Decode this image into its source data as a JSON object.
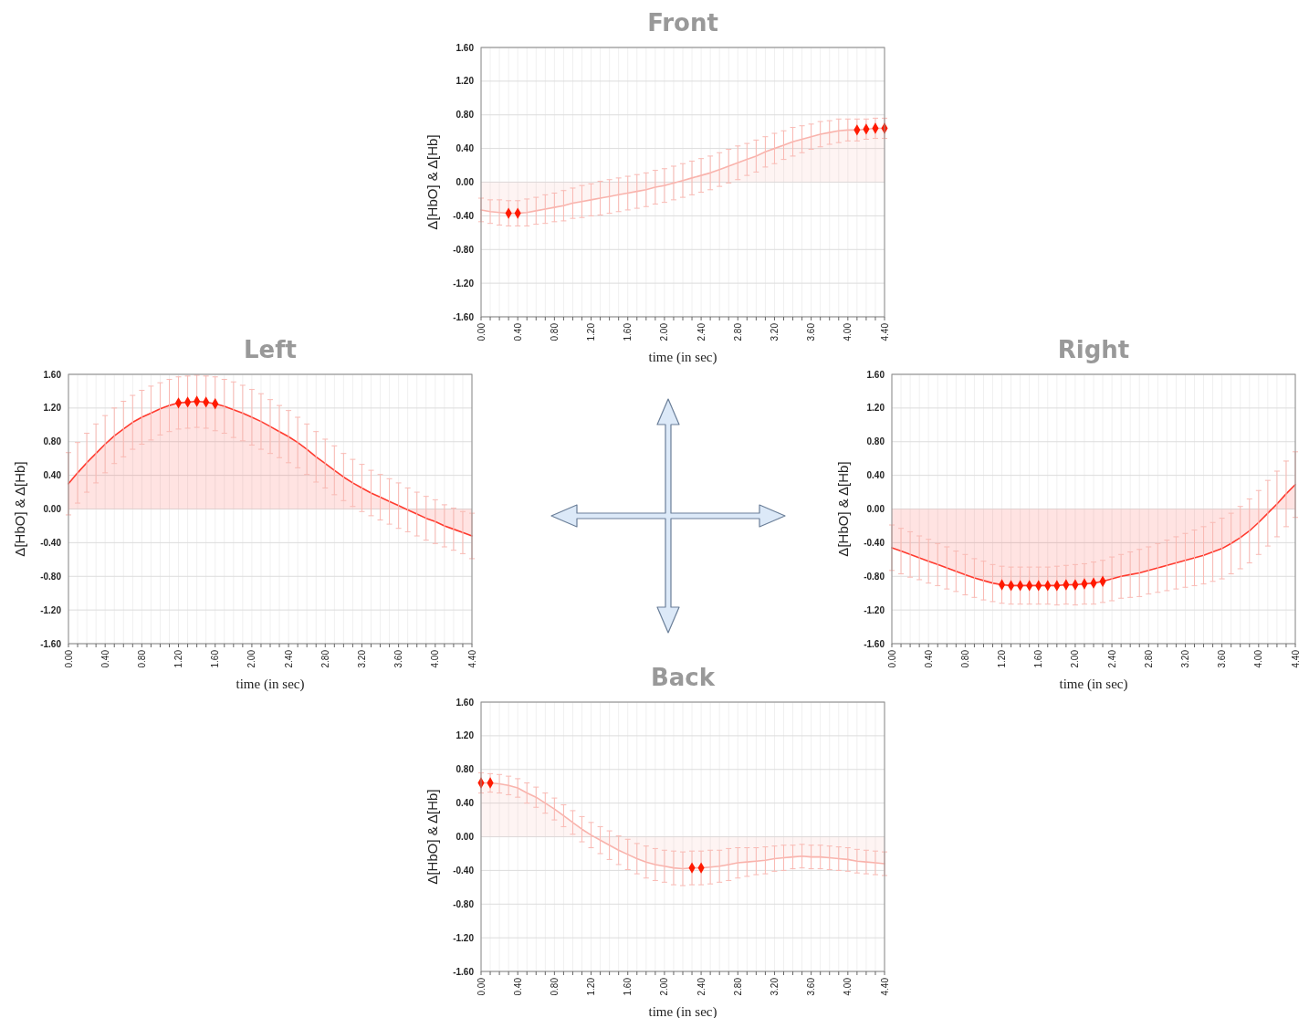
{
  "chart_data": [
    {
      "type": "area",
      "title": "Front",
      "xlabel": "time (in sec)",
      "ylabel": "Δ[HbO] & Δ[Hb]",
      "xlim": [
        0,
        4.4
      ],
      "ylim": [
        -1.6,
        1.6
      ],
      "grid": true,
      "x": [
        0,
        0.1,
        0.2,
        0.3,
        0.4,
        0.5,
        0.6,
        0.7,
        0.8,
        0.9,
        1,
        1.1,
        1.2,
        1.3,
        1.4,
        1.5,
        1.6,
        1.7,
        1.8,
        1.9,
        2,
        2.1,
        2.2,
        2.3,
        2.4,
        2.5,
        2.6,
        2.7,
        2.8,
        2.9,
        3,
        3.1,
        3.2,
        3.3,
        3.4,
        3.5,
        3.6,
        3.7,
        3.8,
        3.9,
        4,
        4.1,
        4.2,
        4.3,
        4.4
      ],
      "xticks": [
        {
          "value": 0,
          "label": "0.00"
        },
        {
          "value": 0.1,
          "label": null
        },
        {
          "value": 0.2,
          "label": null
        },
        {
          "value": 0.3,
          "label": null
        },
        {
          "value": 0.4,
          "label": "0.40"
        },
        {
          "value": 0.5,
          "label": null
        },
        {
          "value": 0.6,
          "label": null
        },
        {
          "value": 0.7,
          "label": null
        },
        {
          "value": 0.8,
          "label": "0.80"
        },
        {
          "value": 0.9,
          "label": null
        },
        {
          "value": 1,
          "label": null
        },
        {
          "value": 1.1,
          "label": null
        },
        {
          "value": 1.2,
          "label": "1.20"
        },
        {
          "value": 1.3,
          "label": null
        },
        {
          "value": 1.4,
          "label": null
        },
        {
          "value": 1.5,
          "label": null
        },
        {
          "value": 1.6,
          "label": "1.60"
        },
        {
          "value": 1.7,
          "label": null
        },
        {
          "value": 1.8,
          "label": null
        },
        {
          "value": 1.9,
          "label": null
        },
        {
          "value": 2,
          "label": "2.00"
        },
        {
          "value": 2.1,
          "label": null
        },
        {
          "value": 2.2,
          "label": null
        },
        {
          "value": 2.3,
          "label": null
        },
        {
          "value": 2.4,
          "label": "2.40"
        },
        {
          "value": 2.5,
          "label": null
        },
        {
          "value": 2.6,
          "label": null
        },
        {
          "value": 2.7,
          "label": null
        },
        {
          "value": 2.8,
          "label": "2.80"
        },
        {
          "value": 2.9,
          "label": null
        },
        {
          "value": 3,
          "label": null
        },
        {
          "value": 3.1,
          "label": null
        },
        {
          "value": 3.2,
          "label": "3.20"
        },
        {
          "value": 3.3,
          "label": null
        },
        {
          "value": 3.4,
          "label": null
        },
        {
          "value": 3.5,
          "label": null
        },
        {
          "value": 3.6,
          "label": "3.60"
        },
        {
          "value": 3.7,
          "label": null
        },
        {
          "value": 3.8,
          "label": null
        },
        {
          "value": 3.9,
          "label": null
        },
        {
          "value": 4,
          "label": "4.00"
        },
        {
          "value": 4.1,
          "label": null
        },
        {
          "value": 4.2,
          "label": null
        },
        {
          "value": 4.3,
          "label": null
        },
        {
          "value": 4.4,
          "label": "4.40"
        }
      ],
      "yticks": [
        {
          "value": -1.6,
          "label": "-1.60"
        },
        {
          "value": -1.2,
          "label": "-1.20"
        },
        {
          "value": -0.8,
          "label": "-0.80"
        },
        {
          "value": -0.4,
          "label": "-0.40"
        },
        {
          "value": 0,
          "label": "0.00"
        },
        {
          "value": 0.4,
          "label": "0.40"
        },
        {
          "value": 0.8,
          "label": "0.80"
        },
        {
          "value": 1.2,
          "label": "1.20"
        },
        {
          "value": 1.6,
          "label": "1.60"
        }
      ],
      "series": [
        {
          "color": "#f9b3ac",
          "values": [
            -0.33,
            -0.35,
            -0.36,
            -0.37,
            -0.37,
            -0.36,
            -0.34,
            -0.32,
            -0.3,
            -0.28,
            -0.25,
            -0.23,
            -0.21,
            -0.19,
            -0.17,
            -0.15,
            -0.13,
            -0.11,
            -0.09,
            -0.06,
            -0.04,
            -0.01,
            0.02,
            0.05,
            0.08,
            0.11,
            0.15,
            0.19,
            0.23,
            0.27,
            0.31,
            0.36,
            0.4,
            0.44,
            0.48,
            0.51,
            0.54,
            0.57,
            0.59,
            0.61,
            0.62,
            0.62,
            0.63,
            0.64,
            0.64
          ],
          "errors": [
            0.14,
            0.14,
            0.15,
            0.15,
            0.15,
            0.16,
            0.16,
            0.17,
            0.17,
            0.18,
            0.18,
            0.19,
            0.19,
            0.2,
            0.2,
            0.2,
            0.2,
            0.2,
            0.2,
            0.2,
            0.2,
            0.2,
            0.2,
            0.2,
            0.2,
            0.2,
            0.2,
            0.2,
            0.2,
            0.19,
            0.19,
            0.18,
            0.18,
            0.17,
            0.17,
            0.16,
            0.15,
            0.15,
            0.14,
            0.14,
            0.13,
            0.13,
            0.12,
            0.12,
            0.12
          ]
        },
        {
          "type": "scatter",
          "marker": "diamond",
          "color": "#ff1a00",
          "x": [
            0.3,
            0.4,
            4.1,
            4.2,
            4.3,
            4.4
          ],
          "values": [
            -0.37,
            -0.37,
            0.62,
            0.63,
            0.64,
            0.64
          ]
        }
      ]
    },
    {
      "type": "area",
      "title": "Left",
      "xlabel": "time (in sec)",
      "ylabel": "Δ[HbO] & Δ[Hb]",
      "xlim": [
        0,
        4.4
      ],
      "ylim": [
        -1.6,
        1.6
      ],
      "grid": true,
      "x": [
        0,
        0.1,
        0.2,
        0.3,
        0.4,
        0.5,
        0.6,
        0.7,
        0.8,
        0.9,
        1,
        1.1,
        1.2,
        1.3,
        1.4,
        1.5,
        1.6,
        1.7,
        1.8,
        1.9,
        2,
        2.1,
        2.2,
        2.3,
        2.4,
        2.5,
        2.6,
        2.7,
        2.8,
        2.9,
        3,
        3.1,
        3.2,
        3.3,
        3.4,
        3.5,
        3.6,
        3.7,
        3.8,
        3.9,
        4,
        4.1,
        4.2,
        4.3,
        4.4
      ],
      "xticks": [
        {
          "value": 0,
          "label": "0.00"
        },
        {
          "value": 0.1,
          "label": null
        },
        {
          "value": 0.2,
          "label": null
        },
        {
          "value": 0.3,
          "label": null
        },
        {
          "value": 0.4,
          "label": "0.40"
        },
        {
          "value": 0.5,
          "label": null
        },
        {
          "value": 0.6,
          "label": null
        },
        {
          "value": 0.7,
          "label": null
        },
        {
          "value": 0.8,
          "label": "0.80"
        },
        {
          "value": 0.9,
          "label": null
        },
        {
          "value": 1,
          "label": null
        },
        {
          "value": 1.1,
          "label": null
        },
        {
          "value": 1.2,
          "label": "1.20"
        },
        {
          "value": 1.3,
          "label": null
        },
        {
          "value": 1.4,
          "label": null
        },
        {
          "value": 1.5,
          "label": null
        },
        {
          "value": 1.6,
          "label": "1.60"
        },
        {
          "value": 1.7,
          "label": null
        },
        {
          "value": 1.8,
          "label": null
        },
        {
          "value": 1.9,
          "label": null
        },
        {
          "value": 2,
          "label": "2.00"
        },
        {
          "value": 2.1,
          "label": null
        },
        {
          "value": 2.2,
          "label": null
        },
        {
          "value": 2.3,
          "label": null
        },
        {
          "value": 2.4,
          "label": "2.40"
        },
        {
          "value": 2.5,
          "label": null
        },
        {
          "value": 2.6,
          "label": null
        },
        {
          "value": 2.7,
          "label": null
        },
        {
          "value": 2.8,
          "label": "2.80"
        },
        {
          "value": 2.9,
          "label": null
        },
        {
          "value": 3,
          "label": null
        },
        {
          "value": 3.1,
          "label": null
        },
        {
          "value": 3.2,
          "label": "3.20"
        },
        {
          "value": 3.3,
          "label": null
        },
        {
          "value": 3.4,
          "label": null
        },
        {
          "value": 3.5,
          "label": null
        },
        {
          "value": 3.6,
          "label": "3.60"
        },
        {
          "value": 3.7,
          "label": null
        },
        {
          "value": 3.8,
          "label": null
        },
        {
          "value": 3.9,
          "label": null
        },
        {
          "value": 4,
          "label": "4.00"
        },
        {
          "value": 4.1,
          "label": null
        },
        {
          "value": 4.2,
          "label": null
        },
        {
          "value": 4.3,
          "label": null
        },
        {
          "value": 4.4,
          "label": "4.40"
        }
      ],
      "yticks": [
        {
          "value": -1.6,
          "label": "-1.60"
        },
        {
          "value": -1.2,
          "label": "-1.20"
        },
        {
          "value": -0.8,
          "label": "-0.80"
        },
        {
          "value": -0.4,
          "label": "-0.40"
        },
        {
          "value": 0,
          "label": "0.00"
        },
        {
          "value": 0.4,
          "label": "0.40"
        },
        {
          "value": 0.8,
          "label": "0.80"
        },
        {
          "value": 1.2,
          "label": "1.20"
        },
        {
          "value": 1.6,
          "label": "1.60"
        }
      ],
      "series": [
        {
          "color": "#ff3b2f",
          "values": [
            0.3,
            0.43,
            0.55,
            0.66,
            0.77,
            0.87,
            0.95,
            1.03,
            1.09,
            1.14,
            1.19,
            1.23,
            1.26,
            1.27,
            1.28,
            1.27,
            1.25,
            1.22,
            1.18,
            1.14,
            1.09,
            1.04,
            0.98,
            0.92,
            0.86,
            0.79,
            0.71,
            0.62,
            0.54,
            0.46,
            0.38,
            0.31,
            0.25,
            0.19,
            0.14,
            0.09,
            0.04,
            -0.01,
            -0.06,
            -0.11,
            -0.15,
            -0.2,
            -0.24,
            -0.28,
            -0.32
          ],
          "errors": [
            0.37,
            0.36,
            0.35,
            0.35,
            0.34,
            0.33,
            0.33,
            0.32,
            0.32,
            0.32,
            0.31,
            0.31,
            0.31,
            0.31,
            0.31,
            0.31,
            0.32,
            0.32,
            0.33,
            0.33,
            0.33,
            0.33,
            0.32,
            0.31,
            0.31,
            0.3,
            0.3,
            0.3,
            0.29,
            0.29,
            0.28,
            0.28,
            0.28,
            0.27,
            0.27,
            0.27,
            0.27,
            0.26,
            0.26,
            0.26,
            0.26,
            0.25,
            0.25,
            0.25,
            0.27
          ]
        },
        {
          "type": "scatter",
          "marker": "diamond",
          "color": "#ff1a00",
          "x": [
            1.2,
            1.3,
            1.4,
            1.5,
            1.6
          ],
          "values": [
            1.26,
            1.27,
            1.28,
            1.27,
            1.25
          ]
        }
      ]
    },
    {
      "type": "area",
      "title": "Right",
      "xlabel": "time (in sec)",
      "ylabel": "Δ[HbO] & Δ[Hb]",
      "xlim": [
        0,
        4.4
      ],
      "ylim": [
        -1.6,
        1.6
      ],
      "grid": true,
      "x": [
        0,
        0.1,
        0.2,
        0.3,
        0.4,
        0.5,
        0.6,
        0.7,
        0.8,
        0.9,
        1,
        1.1,
        1.2,
        1.3,
        1.4,
        1.5,
        1.6,
        1.7,
        1.8,
        1.9,
        2,
        2.1,
        2.2,
        2.3,
        2.4,
        2.5,
        2.6,
        2.7,
        2.8,
        2.9,
        3,
        3.1,
        3.2,
        3.3,
        3.4,
        3.5,
        3.6,
        3.7,
        3.8,
        3.9,
        4,
        4.1,
        4.2,
        4.3,
        4.4
      ],
      "xticks": [
        {
          "value": 0,
          "label": "0.00"
        },
        {
          "value": 0.1,
          "label": null
        },
        {
          "value": 0.2,
          "label": null
        },
        {
          "value": 0.3,
          "label": null
        },
        {
          "value": 0.4,
          "label": "0.40"
        },
        {
          "value": 0.5,
          "label": null
        },
        {
          "value": 0.6,
          "label": null
        },
        {
          "value": 0.7,
          "label": null
        },
        {
          "value": 0.8,
          "label": "0.80"
        },
        {
          "value": 0.9,
          "label": null
        },
        {
          "value": 1,
          "label": null
        },
        {
          "value": 1.1,
          "label": null
        },
        {
          "value": 1.2,
          "label": "1.20"
        },
        {
          "value": 1.3,
          "label": null
        },
        {
          "value": 1.4,
          "label": null
        },
        {
          "value": 1.5,
          "label": null
        },
        {
          "value": 1.6,
          "label": "1.60"
        },
        {
          "value": 1.7,
          "label": null
        },
        {
          "value": 1.8,
          "label": null
        },
        {
          "value": 1.9,
          "label": null
        },
        {
          "value": 2,
          "label": "2.00"
        },
        {
          "value": 2.1,
          "label": null
        },
        {
          "value": 2.2,
          "label": null
        },
        {
          "value": 2.3,
          "label": null
        },
        {
          "value": 2.4,
          "label": "2.40"
        },
        {
          "value": 2.5,
          "label": null
        },
        {
          "value": 2.6,
          "label": null
        },
        {
          "value": 2.7,
          "label": null
        },
        {
          "value": 2.8,
          "label": "2.80"
        },
        {
          "value": 2.9,
          "label": null
        },
        {
          "value": 3,
          "label": null
        },
        {
          "value": 3.1,
          "label": null
        },
        {
          "value": 3.2,
          "label": "3.20"
        },
        {
          "value": 3.3,
          "label": null
        },
        {
          "value": 3.4,
          "label": null
        },
        {
          "value": 3.5,
          "label": null
        },
        {
          "value": 3.6,
          "label": "3.60"
        },
        {
          "value": 3.7,
          "label": null
        },
        {
          "value": 3.8,
          "label": null
        },
        {
          "value": 3.9,
          "label": null
        },
        {
          "value": 4,
          "label": "4.00"
        },
        {
          "value": 4.1,
          "label": null
        },
        {
          "value": 4.2,
          "label": null
        },
        {
          "value": 4.3,
          "label": null
        },
        {
          "value": 4.4,
          "label": "4.40"
        }
      ],
      "yticks": [
        {
          "value": -1.6,
          "label": "-1.60"
        },
        {
          "value": -1.2,
          "label": "-1.20"
        },
        {
          "value": -0.8,
          "label": "-0.80"
        },
        {
          "value": -0.4,
          "label": "-0.40"
        },
        {
          "value": 0,
          "label": "0.00"
        },
        {
          "value": 0.4,
          "label": "0.40"
        },
        {
          "value": 0.8,
          "label": "0.80"
        },
        {
          "value": 1.2,
          "label": "1.20"
        },
        {
          "value": 1.6,
          "label": "1.60"
        }
      ],
      "series": [
        {
          "color": "#ff3b2f",
          "values": [
            -0.46,
            -0.5,
            -0.54,
            -0.58,
            -0.62,
            -0.66,
            -0.7,
            -0.74,
            -0.78,
            -0.82,
            -0.85,
            -0.88,
            -0.9,
            -0.91,
            -0.91,
            -0.91,
            -0.91,
            -0.91,
            -0.91,
            -0.9,
            -0.9,
            -0.89,
            -0.88,
            -0.86,
            -0.83,
            -0.8,
            -0.78,
            -0.76,
            -0.73,
            -0.7,
            -0.67,
            -0.64,
            -0.61,
            -0.58,
            -0.55,
            -0.51,
            -0.47,
            -0.41,
            -0.34,
            -0.26,
            -0.16,
            -0.05,
            0.06,
            0.18,
            0.29
          ],
          "errors": [
            0.27,
            0.27,
            0.27,
            0.26,
            0.26,
            0.25,
            0.25,
            0.24,
            0.24,
            0.23,
            0.23,
            0.22,
            0.22,
            0.22,
            0.22,
            0.22,
            0.22,
            0.22,
            0.23,
            0.23,
            0.24,
            0.24,
            0.25,
            0.25,
            0.26,
            0.26,
            0.27,
            0.28,
            0.28,
            0.29,
            0.3,
            0.31,
            0.32,
            0.33,
            0.34,
            0.35,
            0.36,
            0.36,
            0.37,
            0.38,
            0.38,
            0.39,
            0.39,
            0.39,
            0.39
          ]
        },
        {
          "type": "scatter",
          "marker": "diamond",
          "color": "#ff1a00",
          "x": [
            1.2,
            1.3,
            1.4,
            1.5,
            1.6,
            1.7,
            1.8,
            1.9,
            2,
            2.1,
            2.2,
            2.3
          ],
          "values": [
            -0.9,
            -0.91,
            -0.91,
            -0.91,
            -0.91,
            -0.91,
            -0.91,
            -0.9,
            -0.9,
            -0.89,
            -0.88,
            -0.86
          ]
        }
      ]
    },
    {
      "type": "area",
      "title": "Back",
      "xlabel": "time (in sec)",
      "ylabel": "Δ[HbO] & Δ[Hb]",
      "xlim": [
        0,
        4.4
      ],
      "ylim": [
        -1.6,
        1.6
      ],
      "grid": true,
      "x": [
        0,
        0.1,
        0.2,
        0.3,
        0.4,
        0.5,
        0.6,
        0.7,
        0.8,
        0.9,
        1,
        1.1,
        1.2,
        1.3,
        1.4,
        1.5,
        1.6,
        1.7,
        1.8,
        1.9,
        2,
        2.1,
        2.2,
        2.3,
        2.4,
        2.5,
        2.6,
        2.7,
        2.8,
        2.9,
        3,
        3.1,
        3.2,
        3.3,
        3.4,
        3.5,
        3.6,
        3.7,
        3.8,
        3.9,
        4,
        4.1,
        4.2,
        4.3,
        4.4
      ],
      "xticks": [
        {
          "value": 0,
          "label": "0.00"
        },
        {
          "value": 0.1,
          "label": null
        },
        {
          "value": 0.2,
          "label": null
        },
        {
          "value": 0.3,
          "label": null
        },
        {
          "value": 0.4,
          "label": "0.40"
        },
        {
          "value": 0.5,
          "label": null
        },
        {
          "value": 0.6,
          "label": null
        },
        {
          "value": 0.7,
          "label": null
        },
        {
          "value": 0.8,
          "label": "0.80"
        },
        {
          "value": 0.9,
          "label": null
        },
        {
          "value": 1,
          "label": null
        },
        {
          "value": 1.1,
          "label": null
        },
        {
          "value": 1.2,
          "label": "1.20"
        },
        {
          "value": 1.3,
          "label": null
        },
        {
          "value": 1.4,
          "label": null
        },
        {
          "value": 1.5,
          "label": null
        },
        {
          "value": 1.6,
          "label": "1.60"
        },
        {
          "value": 1.7,
          "label": null
        },
        {
          "value": 1.8,
          "label": null
        },
        {
          "value": 1.9,
          "label": null
        },
        {
          "value": 2,
          "label": "2.00"
        },
        {
          "value": 2.1,
          "label": null
        },
        {
          "value": 2.2,
          "label": null
        },
        {
          "value": 2.3,
          "label": null
        },
        {
          "value": 2.4,
          "label": "2.40"
        },
        {
          "value": 2.5,
          "label": null
        },
        {
          "value": 2.6,
          "label": null
        },
        {
          "value": 2.7,
          "label": null
        },
        {
          "value": 2.8,
          "label": "2.80"
        },
        {
          "value": 2.9,
          "label": null
        },
        {
          "value": 3,
          "label": null
        },
        {
          "value": 3.1,
          "label": null
        },
        {
          "value": 3.2,
          "label": "3.20"
        },
        {
          "value": 3.3,
          "label": null
        },
        {
          "value": 3.4,
          "label": null
        },
        {
          "value": 3.5,
          "label": null
        },
        {
          "value": 3.6,
          "label": "3.60"
        },
        {
          "value": 3.7,
          "label": null
        },
        {
          "value": 3.8,
          "label": null
        },
        {
          "value": 3.9,
          "label": null
        },
        {
          "value": 4,
          "label": "4.00"
        },
        {
          "value": 4.1,
          "label": null
        },
        {
          "value": 4.2,
          "label": null
        },
        {
          "value": 4.3,
          "label": null
        },
        {
          "value": 4.4,
          "label": "4.40"
        }
      ],
      "yticks": [
        {
          "value": -1.6,
          "label": "-1.60"
        },
        {
          "value": -1.2,
          "label": "-1.20"
        },
        {
          "value": -0.8,
          "label": "-0.80"
        },
        {
          "value": -0.4,
          "label": "-0.40"
        },
        {
          "value": 0,
          "label": "0.00"
        },
        {
          "value": 0.4,
          "label": "0.40"
        },
        {
          "value": 0.8,
          "label": "0.80"
        },
        {
          "value": 1.2,
          "label": "1.20"
        },
        {
          "value": 1.6,
          "label": "1.60"
        }
      ],
      "series": [
        {
          "color": "#f9b3ac",
          "values": [
            0.64,
            0.64,
            0.63,
            0.61,
            0.58,
            0.52,
            0.47,
            0.4,
            0.33,
            0.25,
            0.17,
            0.09,
            0.02,
            -0.04,
            -0.1,
            -0.16,
            -0.21,
            -0.26,
            -0.3,
            -0.33,
            -0.35,
            -0.37,
            -0.38,
            -0.37,
            -0.37,
            -0.36,
            -0.35,
            -0.33,
            -0.31,
            -0.3,
            -0.29,
            -0.28,
            -0.26,
            -0.25,
            -0.24,
            -0.23,
            -0.24,
            -0.24,
            -0.25,
            -0.26,
            -0.27,
            -0.29,
            -0.3,
            -0.31,
            -0.32
          ],
          "errors": [
            0.12,
            0.11,
            0.11,
            0.11,
            0.11,
            0.12,
            0.12,
            0.12,
            0.13,
            0.13,
            0.14,
            0.15,
            0.15,
            0.16,
            0.17,
            0.17,
            0.18,
            0.18,
            0.19,
            0.19,
            0.19,
            0.2,
            0.2,
            0.2,
            0.2,
            0.2,
            0.19,
            0.19,
            0.18,
            0.17,
            0.16,
            0.16,
            0.15,
            0.15,
            0.14,
            0.14,
            0.14,
            0.14,
            0.14,
            0.14,
            0.14,
            0.14,
            0.14,
            0.14,
            0.14
          ]
        },
        {
          "type": "scatter",
          "marker": "diamond",
          "color": "#ff1a00",
          "x": [
            0,
            0.1,
            2.3,
            2.4
          ],
          "values": [
            0.64,
            0.64,
            -0.37,
            -0.37
          ]
        }
      ]
    }
  ]
}
